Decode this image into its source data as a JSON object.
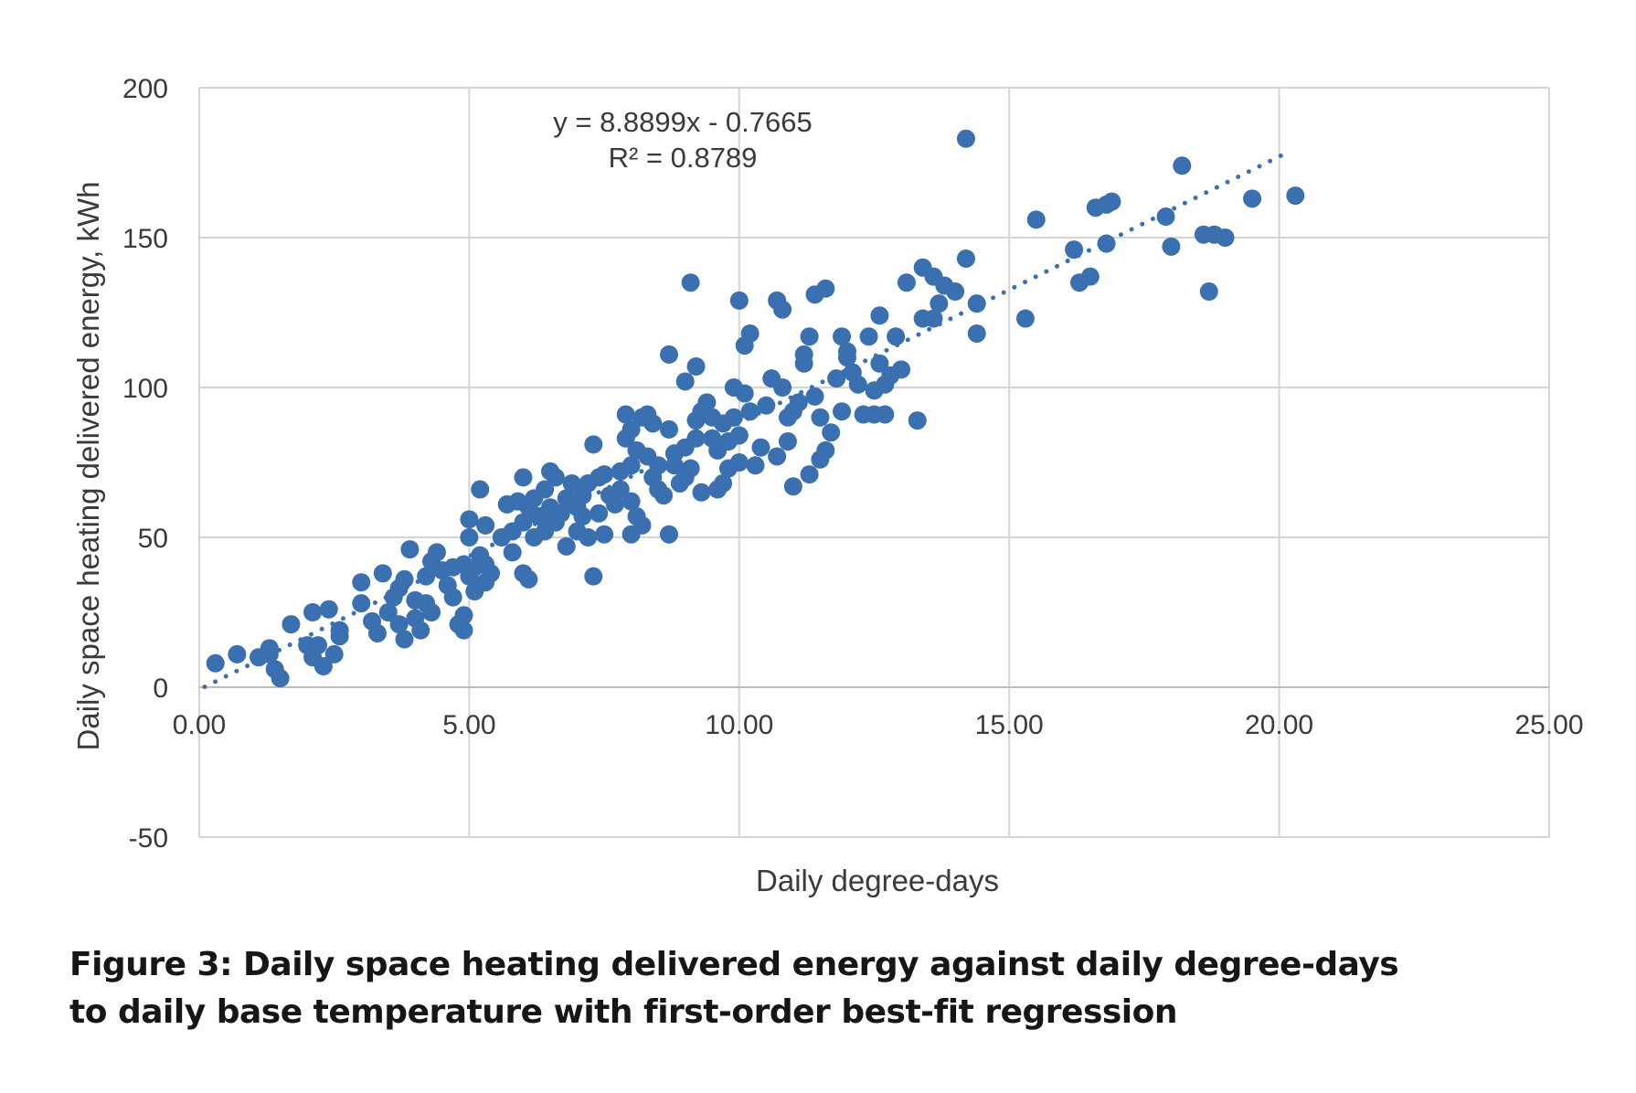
{
  "caption": {
    "line1": "Figure 3: Daily space heating delivered energy against daily degree-days",
    "line2": "to daily base temperature with first-order best-fit regression"
  },
  "chart_data": {
    "type": "scatter",
    "title": "",
    "xlabel": "Daily degree-days",
    "ylabel": "Daily space heating delivered energy, kWh",
    "xlim": [
      0,
      25
    ],
    "ylim": [
      -50,
      200
    ],
    "x_ticks": [
      0,
      5,
      10,
      15,
      20,
      25
    ],
    "x_tick_labels": [
      "0.00",
      "5.00",
      "10.00",
      "15.00",
      "20.00",
      "25.00"
    ],
    "y_ticks": [
      -50,
      0,
      50,
      100,
      150,
      200
    ],
    "y_tick_labels": [
      "-50",
      "0",
      "50",
      "100",
      "150",
      "200"
    ],
    "grid": true,
    "legend": "none",
    "point_color": "#3a6fb0",
    "trendline": {
      "type": "linear",
      "slope": 8.8899,
      "intercept": -0.7665,
      "x_range": [
        0.1,
        20.2
      ],
      "equation_label": "y = 8.8899x - 0.7665",
      "r2_label": "R² = 0.8789",
      "style": "dotted"
    },
    "points": [
      [
        0.3,
        8
      ],
      [
        0.7,
        11
      ],
      [
        1.1,
        10
      ],
      [
        1.3,
        13
      ],
      [
        1.4,
        6
      ],
      [
        1.5,
        3
      ],
      [
        1.3,
        11
      ],
      [
        1.7,
        21
      ],
      [
        2,
        14
      ],
      [
        2.1,
        10
      ],
      [
        2.1,
        25
      ],
      [
        2.3,
        7
      ],
      [
        2.4,
        26
      ],
      [
        2.5,
        11
      ],
      [
        2.6,
        19
      ],
      [
        2.2,
        14
      ],
      [
        2.6,
        17
      ],
      [
        3,
        35
      ],
      [
        3,
        28
      ],
      [
        3.2,
        22
      ],
      [
        3.3,
        18
      ],
      [
        3.4,
        38
      ],
      [
        3.5,
        25
      ],
      [
        3.6,
        30
      ],
      [
        3.7,
        33
      ],
      [
        3.7,
        21
      ],
      [
        3.8,
        16
      ],
      [
        3.8,
        36
      ],
      [
        3.9,
        46
      ],
      [
        4,
        23
      ],
      [
        4,
        29
      ],
      [
        4.1,
        19
      ],
      [
        4.2,
        37
      ],
      [
        4.2,
        28
      ],
      [
        4.3,
        25
      ],
      [
        4.3,
        42
      ],
      [
        4.4,
        45
      ],
      [
        4.5,
        39
      ],
      [
        4.6,
        34
      ],
      [
        4.7,
        30
      ],
      [
        4.7,
        40
      ],
      [
        4.8,
        21
      ],
      [
        4.9,
        24
      ],
      [
        4.9,
        19
      ],
      [
        4.9,
        41
      ],
      [
        5,
        50
      ],
      [
        5,
        37
      ],
      [
        5,
        56
      ],
      [
        5.1,
        40
      ],
      [
        5.1,
        32
      ],
      [
        5.2,
        66
      ],
      [
        5.2,
        44
      ],
      [
        5.3,
        54
      ],
      [
        5.3,
        35
      ],
      [
        5.3,
        41
      ],
      [
        5.4,
        38
      ],
      [
        5.6,
        50
      ],
      [
        5.7,
        61
      ],
      [
        5.8,
        52
      ],
      [
        5.8,
        45
      ],
      [
        5.9,
        62
      ],
      [
        6,
        70
      ],
      [
        6,
        55
      ],
      [
        6,
        38
      ],
      [
        6.1,
        60
      ],
      [
        6.1,
        36
      ],
      [
        6.2,
        50
      ],
      [
        6.2,
        63
      ],
      [
        6.3,
        57
      ],
      [
        6.4,
        52
      ],
      [
        6.4,
        66
      ],
      [
        6.5,
        72
      ],
      [
        6.5,
        60
      ],
      [
        6.6,
        55
      ],
      [
        6.6,
        70
      ],
      [
        6.7,
        58
      ],
      [
        6.8,
        47
      ],
      [
        6.8,
        63
      ],
      [
        6.9,
        68
      ],
      [
        7,
        52
      ],
      [
        7,
        60
      ],
      [
        7.1,
        57
      ],
      [
        7.1,
        64
      ],
      [
        7.2,
        50
      ],
      [
        7.2,
        68
      ],
      [
        7.3,
        37
      ],
      [
        7.3,
        81
      ],
      [
        7.4,
        70
      ],
      [
        7.4,
        58
      ],
      [
        7.5,
        51
      ],
      [
        7.5,
        71
      ],
      [
        7.6,
        64
      ],
      [
        7.7,
        61
      ],
      [
        7.8,
        72
      ],
      [
        7.8,
        66
      ],
      [
        7.9,
        91
      ],
      [
        7.9,
        83
      ],
      [
        8,
        74
      ],
      [
        8,
        86
      ],
      [
        8,
        51
      ],
      [
        8,
        62
      ],
      [
        8.1,
        79
      ],
      [
        8.1,
        57
      ],
      [
        8.2,
        90
      ],
      [
        8.2,
        54
      ],
      [
        8.3,
        77
      ],
      [
        8.3,
        91
      ],
      [
        8.4,
        88
      ],
      [
        8.4,
        70
      ],
      [
        8.5,
        74
      ],
      [
        8.5,
        66
      ],
      [
        8.6,
        64
      ],
      [
        8.7,
        51
      ],
      [
        8.7,
        86
      ],
      [
        8.7,
        111
      ],
      [
        8.8,
        78
      ],
      [
        8.8,
        74
      ],
      [
        8.9,
        68
      ],
      [
        9,
        80
      ],
      [
        9,
        102
      ],
      [
        9,
        70
      ],
      [
        9.1,
        135
      ],
      [
        9.1,
        73
      ],
      [
        9.2,
        107
      ],
      [
        9.2,
        83
      ],
      [
        9.2,
        89
      ],
      [
        9.3,
        92
      ],
      [
        9.3,
        65
      ],
      [
        9.4,
        95
      ],
      [
        9.5,
        83
      ],
      [
        9.5,
        90
      ],
      [
        9.6,
        66
      ],
      [
        9.6,
        79
      ],
      [
        9.7,
        88
      ],
      [
        9.7,
        68
      ],
      [
        9.8,
        82
      ],
      [
        9.8,
        73
      ],
      [
        9.9,
        100
      ],
      [
        9.9,
        90
      ],
      [
        10,
        84
      ],
      [
        10,
        129
      ],
      [
        10,
        75
      ],
      [
        10.1,
        98
      ],
      [
        10.1,
        114
      ],
      [
        10.2,
        118
      ],
      [
        10.2,
        92
      ],
      [
        10.3,
        74
      ],
      [
        10.4,
        80
      ],
      [
        10.5,
        94
      ],
      [
        10.6,
        103
      ],
      [
        10.7,
        129
      ],
      [
        10.7,
        77
      ],
      [
        10.8,
        126
      ],
      [
        10.8,
        100
      ],
      [
        10.9,
        82
      ],
      [
        10.9,
        90
      ],
      [
        11,
        67
      ],
      [
        11,
        92
      ],
      [
        11.1,
        95
      ],
      [
        11.2,
        111
      ],
      [
        11.2,
        108
      ],
      [
        11.3,
        71
      ],
      [
        11.3,
        117
      ],
      [
        11.4,
        131
      ],
      [
        11.4,
        97
      ],
      [
        11.5,
        90
      ],
      [
        11.5,
        76
      ],
      [
        11.6,
        133
      ],
      [
        11.6,
        79
      ],
      [
        11.7,
        85
      ],
      [
        11.8,
        103
      ],
      [
        11.9,
        117
      ],
      [
        11.9,
        92
      ],
      [
        12,
        110
      ],
      [
        12,
        112
      ],
      [
        12.1,
        105
      ],
      [
        12.2,
        101
      ],
      [
        12.3,
        91
      ],
      [
        12.4,
        117
      ],
      [
        12.5,
        91
      ],
      [
        12.5,
        99
      ],
      [
        12.6,
        124
      ],
      [
        12.6,
        108
      ],
      [
        12.7,
        101
      ],
      [
        12.7,
        91
      ],
      [
        12.8,
        104
      ],
      [
        12.9,
        117
      ],
      [
        13,
        106
      ],
      [
        13.1,
        135
      ],
      [
        13.3,
        89
      ],
      [
        13.4,
        140
      ],
      [
        13.4,
        123
      ],
      [
        13.6,
        123
      ],
      [
        13.6,
        137
      ],
      [
        13.7,
        128
      ],
      [
        13.8,
        134
      ],
      [
        14,
        132
      ],
      [
        14.2,
        143
      ],
      [
        14.2,
        183
      ],
      [
        14.4,
        118
      ],
      [
        14.4,
        128
      ],
      [
        15.3,
        123
      ],
      [
        15.5,
        156
      ],
      [
        16.2,
        146
      ],
      [
        16.3,
        135
      ],
      [
        16.5,
        137
      ],
      [
        16.6,
        160
      ],
      [
        16.8,
        148
      ],
      [
        16.8,
        161
      ],
      [
        16.9,
        162
      ],
      [
        17.9,
        157
      ],
      [
        18,
        147
      ],
      [
        18.2,
        174
      ],
      [
        18.6,
        151
      ],
      [
        18.7,
        132
      ],
      [
        18.8,
        151
      ],
      [
        19,
        150
      ],
      [
        19.5,
        163
      ],
      [
        20.3,
        164
      ]
    ]
  }
}
